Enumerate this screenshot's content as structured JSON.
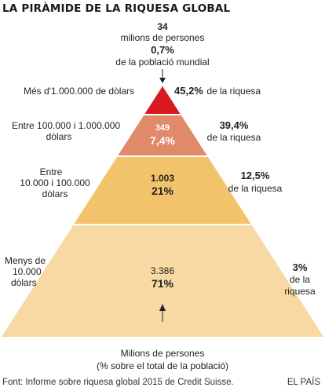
{
  "title": "LA PIRÀMIDE DE LA RIQUESA GLOBAL",
  "colors": {
    "tier1": "#d71920",
    "tier2": "#e08a6a",
    "tier3": "#f3c36c",
    "tier4": "#f8d9a4",
    "text": "#222222"
  },
  "chart_data": {
    "type": "pyramid",
    "unit_people": "Milions de persones",
    "unit_share": "% sobre el total de la població",
    "tiers": [
      {
        "wealth_range": "Més d'1.000.000 de dòlars",
        "people_millions": "34",
        "population_share": "0,7%",
        "wealth_share": "45,2%",
        "color": "#d71920"
      },
      {
        "wealth_range": "Entre 100.000 i 1.000.000 dòlars",
        "people_millions": "349",
        "population_share": "7,4%",
        "wealth_share": "39,4%",
        "color": "#e08a6a"
      },
      {
        "wealth_range": "Entre 10.000 i 100.000 dòlars",
        "people_millions": "1.003",
        "population_share": "21%",
        "wealth_share": "12,5%",
        "color": "#f3c36c"
      },
      {
        "wealth_range": "Menys de 10.000 dòlars",
        "people_millions": "3.386",
        "population_share": "71%",
        "wealth_share": "3%",
        "color": "#f8d9a4"
      }
    ]
  },
  "labels": {
    "top_number": "34",
    "top_line1": "milions de persones",
    "top_pct": "0,7%",
    "top_line2": "de la població mundial",
    "left": [
      "Més d'1.000.000 de dòlars",
      "Entre 100.000 i 1.000.000",
      "dòlars",
      "Entre",
      "10.000 i 100.000",
      "dòlars",
      "Menys de",
      "10.000",
      "dòlars"
    ],
    "right": {
      "w1_pct": "45,2%",
      "w1_text": "de la riquesa",
      "w2_pct": "39,4%",
      "w2_text": "de la riquesa",
      "w3_pct": "12,5%",
      "w3_text": "de la riquesa",
      "w4_pct": "3%",
      "w4_text1": "de la",
      "w4_text2": "riquesa"
    },
    "inner": {
      "t2_num": "349",
      "t2_pct": "7,4%",
      "t3_num": "1.003",
      "t3_pct": "21%",
      "t4_num": "3.386",
      "t4_pct": "71%"
    },
    "bottom_line1": "Milions de persones",
    "bottom_line2": "(% sobre el total de la població)"
  },
  "footer": {
    "source": "Font: Informe sobre riquesa global 2015 de Credit Suisse.",
    "credit": "EL PAÍS"
  }
}
